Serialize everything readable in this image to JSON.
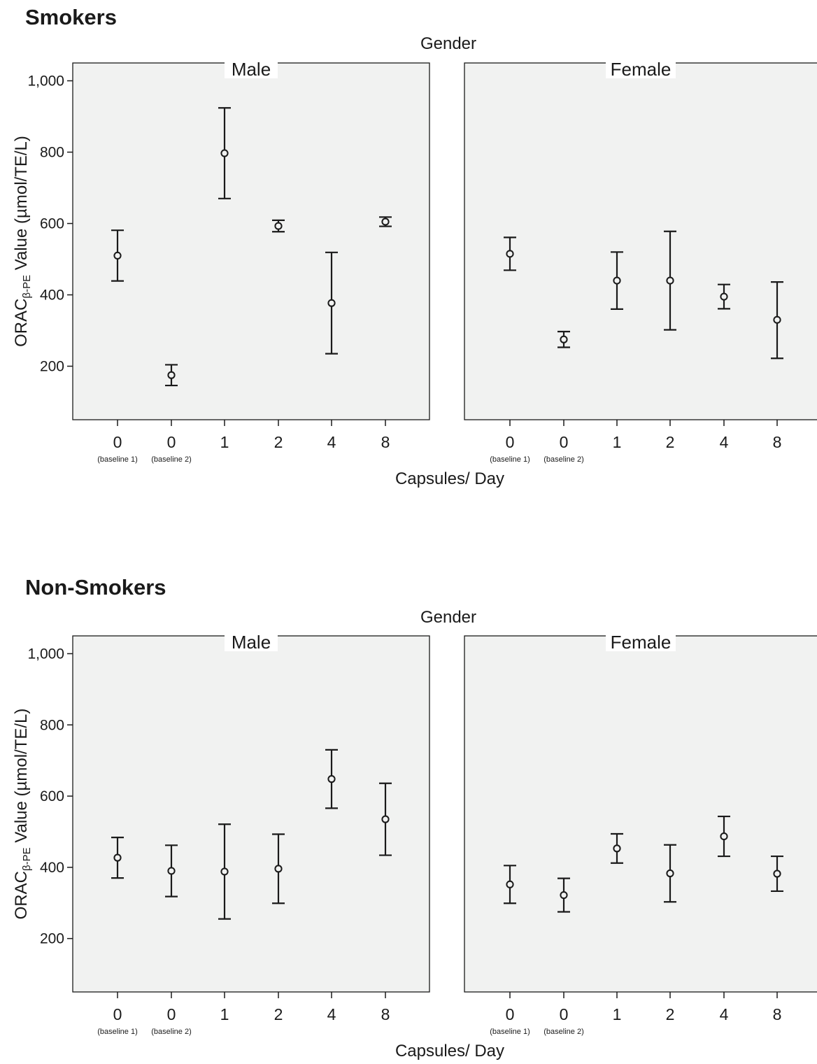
{
  "chart_data": [
    {
      "type": "errorbar",
      "section_title": "Smokers",
      "facet_title": "Gender",
      "ylabel_main": "ORAC",
      "ylabel_sub": "β-PE",
      "ylabel_rest": " Value (µmol/TE/L)",
      "xlabel": "Capsules/ Day",
      "yticks": [
        200,
        400,
        600,
        800,
        1000
      ],
      "ytick_labels": [
        "200",
        "400",
        "600",
        "800",
        "1,000"
      ],
      "ylim": [
        50,
        1050
      ],
      "categories": [
        "0",
        "0",
        "1",
        "2",
        "4",
        "8"
      ],
      "category_sublabels": [
        "(baseline 1)",
        "(baseline 2)",
        "",
        "",
        "",
        ""
      ],
      "panels": [
        {
          "name": "Male",
          "mean": [
            510,
            175,
            797,
            593,
            377,
            605
          ],
          "lower": [
            439,
            146,
            670,
            577,
            235,
            592
          ],
          "upper": [
            581,
            204,
            924,
            609,
            519,
            618
          ]
        },
        {
          "name": "Female",
          "mean": [
            515,
            275,
            440,
            440,
            395,
            330
          ],
          "lower": [
            469,
            253,
            360,
            302,
            361,
            222
          ],
          "upper": [
            561,
            297,
            520,
            578,
            429,
            436
          ]
        }
      ]
    },
    {
      "type": "errorbar",
      "section_title": "Non-Smokers",
      "facet_title": "Gender",
      "ylabel_main": "ORAC",
      "ylabel_sub": "β-PE",
      "ylabel_rest": " Value (µmol/TE/L)",
      "xlabel": "Capsules/ Day",
      "yticks": [
        200,
        400,
        600,
        800,
        1000
      ],
      "ytick_labels": [
        "200",
        "400",
        "600",
        "800",
        "1,000"
      ],
      "ylim": [
        50,
        1050
      ],
      "categories": [
        "0",
        "0",
        "1",
        "2",
        "4",
        "8"
      ],
      "category_sublabels": [
        "(baseline 1)",
        "(baseline 2)",
        "",
        "",
        "",
        ""
      ],
      "panels": [
        {
          "name": "Male",
          "mean": [
            427,
            390,
            388,
            396,
            648,
            535
          ],
          "lower": [
            370,
            318,
            255,
            299,
            566,
            434
          ],
          "upper": [
            484,
            462,
            521,
            493,
            730,
            636
          ]
        },
        {
          "name": "Female",
          "mean": [
            352,
            322,
            453,
            383,
            487,
            382
          ],
          "lower": [
            299,
            275,
            412,
            303,
            431,
            333
          ],
          "upper": [
            405,
            369,
            494,
            463,
            543,
            431
          ]
        }
      ]
    }
  ]
}
